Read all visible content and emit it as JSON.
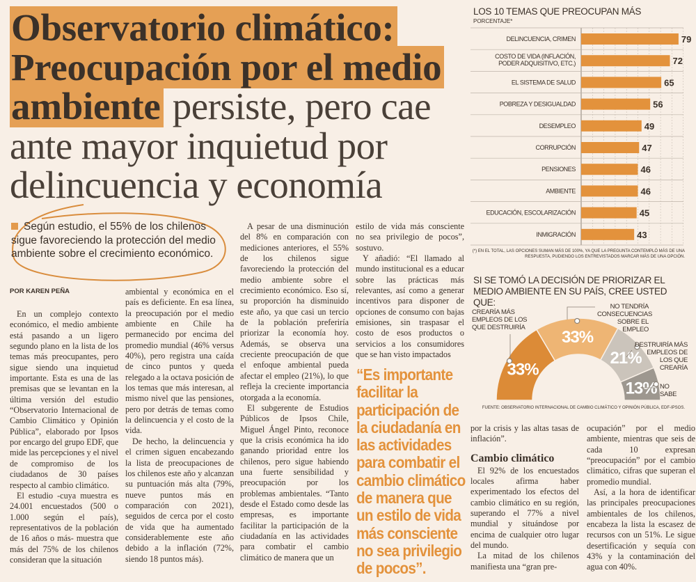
{
  "headline": {
    "line1": "Observatorio climático:",
    "line2": "Preocupación por el medio",
    "line3_bold": "ambiente",
    "line3_rest": " persiste, pero cae",
    "line4": "ante mayor inquietud por",
    "line5": "delincuencia y economía"
  },
  "lede": "Según estudio, el 55% de los chilenos sigue favoreciendo la protección del medio ambiente sobre el crecimiento económico.",
  "byline": "POR KAREN PEÑA",
  "columns": {
    "c1": [
      "En un complejo contexto económico, el medio ambiente está pasando a un ligero segundo plano en la lista de los temas más preocupantes, pero sigue siendo una inquietud importante. Esta es una de las premisas que se levantan en la última versión del estudio “Observatorio Internacional de Cambio Climático y Opinión Pública”, elaborado por Ipsos por encargo del grupo EDF, que mide las percepciones y el nivel de compromiso de los ciudadanos de 30 países respecto al cambio climático.",
      "El estudio -cuya muestra es 24.001 encuestados (500 o 1.000 según el país), representativos de la población de 16 años o más- muestra que más del 75% de los chilenos consideran que la situación"
    ],
    "c2": [
      "ambiental y económica en el país es deficiente. En esa línea, la preocupación por el medio ambiente en Chile ha permanecido por encima del promedio mundial (46% versus 40%), pero registra una caída de cinco puntos y queda relegado a la octava posición de los temas que más interesan, al mismo nivel que las pensiones, pero por detrás de temas como la delincuencia y el costo de la vida.",
      "De hecho, la delincuencia y el crimen siguen encabezando la lista de preocupaciones de los chilenos este año y alcanzan su puntuación más alta (79%, nueve puntos más en comparación con 2021), seguidos de cerca por el costo de vida que ha aumentado considerablemente este año debido a la inflación (72%, siendo 18 puntos más)."
    ],
    "c3": [
      "A pesar de una disminución del 8% en comparación con mediciones anteriores, el 55% de los chilenos sigue favoreciendo la protección del medio ambiente sobre el crecimiento económico. Eso sí, su proporción ha disminuido este año, ya que casi un tercio de la población preferiría priorizar la economía hoy. Además, se observa una creciente preocupación de que el enfoque ambiental pueda afectar el empleo (21%), lo que refleja la creciente importancia otorgada a la economía.",
      "El subgerente de Estudios Públicos de Ipsos Chile, Miguel Ángel Pinto, reconoce que la crisis económica ha ido ganando prioridad entre los chilenos, pero sigue habiendo una fuerte sensibilidad y preocupación por los problemas ambientales. “Tanto desde el Estado como desde las empresas, es importante facilitar la participación de la ciudadanía en las actividades para combatir el cambio climático de manera que un"
    ],
    "c4": [
      "estilo de vida más consciente no sea privilegio de pocos”, sostuvo.",
      "Y añadió: “El llamado al mundo institucional es a educar sobre las prácticas más relevantes, así como a generar incentivos para disponer de opciones de consumo con bajas emisiones, sin traspasar el costo de esos productos o servicios a los consumidores que se han visto impactados"
    ],
    "c5_pre": "por la crisis y las altas tasas de inflación”.",
    "c5_heading": "Cambio climático",
    "c5": [
      "El 92% de los encuestados locales afirma haber experimentado los efectos del cambio climático en su región, superando el 77% a nivel mundial y situándose por encima de cualquier otro lugar del mundo.",
      "La mitad de los chilenos manifiesta una “gran pre-"
    ],
    "c6": [
      "ocupación” por el medio ambiente, mientras que seis de cada 10 expresan “preocupación” por el cambio climático, cifras que superan el promedio mundial.",
      "Así, a la hora de identificar las principales preocupaciones ambientales de los chilenos, encabeza la lista la escasez de recursos con un 51%. Le sigue desertificación y sequía con 43% y la contaminación del agua con 40%."
    ]
  },
  "pull_quote": [
    "“Es importante",
    "facilitar la",
    "participación de",
    "la ciudadanía en",
    "las actividades",
    "para combatir el",
    "cambio climático",
    "de manera que",
    "un estilo de vida",
    "más consciente",
    "no sea privilegio",
    "de pocos”."
  ],
  "colors": {
    "accent": "#e5a055",
    "bar": "#e3923c",
    "text": "#3b3129",
    "background": "#f8efe6"
  },
  "chart_data": [
    {
      "type": "bar",
      "orientation": "horizontal",
      "title": "LOS 10 TEMAS QUE PREOCUPAN MÁS",
      "subtitle": "PORCENTAJE*",
      "categories": [
        "DELINCUENCIA, CRIMEN",
        "COSTO DE VIDA (INFLACIÓN, PODER ADQUISITIVO, ETC.)",
        "EL SISTEMA DE SALUD",
        "POBREZA Y DESIGUALDAD",
        "DESEMPLEO",
        "CORRUPCIÓN",
        "PENSIONES",
        "AMBIENTE",
        "EDUCACIÓN, ESCOLARIZACIÓN",
        "INMIGRACIÓN"
      ],
      "values": [
        79,
        72,
        65,
        56,
        49,
        47,
        46,
        46,
        45,
        43
      ],
      "xlim": [
        0,
        80
      ],
      "grid": true,
      "footnote": "(*) EN EL TOTAL, LAS OPCIONES SUMAN MÁS DE 100%, YA QUE LA PREGUNTA CONTEMPLÓ MÁS DE UNA RESPUESTA, PUDIENDO LOS ENTREVISTADOS MARCAR MÁS DE UNA OPCIÓN."
    },
    {
      "type": "pie",
      "variant": "half-donut",
      "title": "SI SE TOMÓ LA DECISIÓN DE PRIORIZAR EL MEDIO AMBIENTE EN SU PAÍS, CREE USTED QUE:",
      "slices": [
        {
          "label": "CREARÍA MÁS EMPLEOS DE LOS QUE DESTRUIRÍA",
          "value": 33,
          "display": "33%",
          "color": "#dc8b37"
        },
        {
          "label": "NO TENDRÍA CONSECUENCIAS SOBRE EL EMPLEO",
          "value": 33,
          "display": "33%",
          "color": "#eeb574"
        },
        {
          "label": "DESTRUIRÍA MÁS EMPLEOS DE LOS QUE CREARÍA",
          "value": 21,
          "display": "21%",
          "color": "#cbc4bb"
        },
        {
          "label": "NO SABE",
          "value": 13,
          "display": "13%",
          "color": "#9d978f"
        }
      ],
      "source": "FUENTE: OBSERVATORIO INTERNACIONAL DE CAMBIO CLIMÁTICO Y OPINIÓN PÚBLICA, EDF-IPSOS."
    }
  ]
}
